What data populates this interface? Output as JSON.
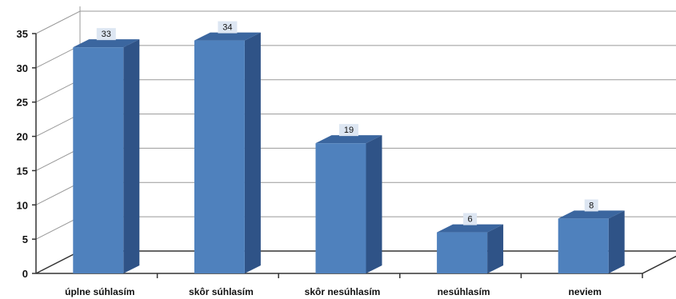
{
  "chart_data": {
    "type": "bar",
    "three_d": true,
    "categories": [
      "úplne súhlasím",
      "skôr súhlasím",
      "skôr nesúhlasím",
      "nesúhlasím",
      "neviem"
    ],
    "values": [
      33,
      34,
      19,
      6,
      8
    ],
    "title": "",
    "xlabel": "",
    "ylabel": "",
    "ylim": [
      0,
      35
    ],
    "yticks": [
      0,
      5,
      10,
      15,
      20,
      25,
      30,
      35
    ],
    "grid": true,
    "legend": "none",
    "data_labels": true
  },
  "colors": {
    "bar_front": "#4f81bd",
    "bar_side": "#2f5387",
    "bar_top": "#3b669f",
    "grid": "#999999",
    "axis": "#333333",
    "label_bg": "#dde6f2"
  }
}
